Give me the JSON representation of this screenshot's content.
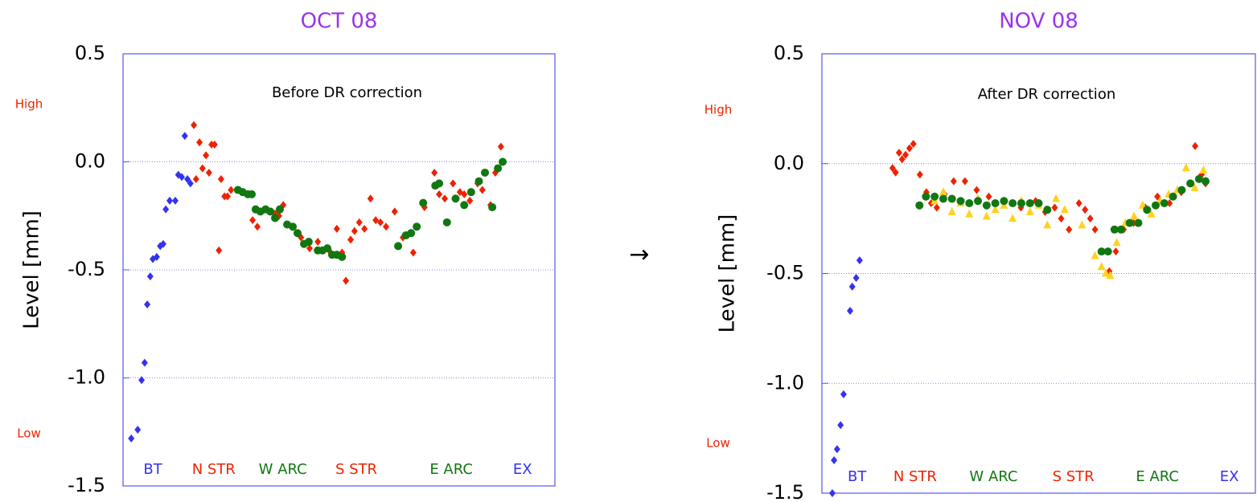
{
  "chart_data": [
    {
      "type": "scatter",
      "title": "OCT 08",
      "y_label": "Level [mm]",
      "annotation": "Before DR correction",
      "y_high_label": "High",
      "y_low_label": "Low",
      "sections": [
        "BT",
        "N STR",
        "W ARC",
        "S STR",
        "E ARC",
        "EX"
      ],
      "section_colors": [
        "#3333ee",
        "#ee2200",
        "#117711",
        "#ee2200",
        "#117711",
        "#3333ee"
      ],
      "xlim": [
        0,
        100
      ],
      "ylim": [
        -1.5,
        0.5
      ],
      "yticks": [
        0.5,
        {
          "value": 0,
          "label": "0.0"
        },
        -0.5,
        {
          "value": -1,
          "label": "-1.0"
        },
        -1.5
      ],
      "grid": true,
      "series": [
        {
          "color": "#3333ee",
          "marker": "diamond",
          "x": [
            1.9,
            3.4,
            4.3,
            5.0,
            5.6,
            6.3,
            6.9,
            7.8,
            8.6,
            9.3,
            9.9,
            10.8,
            12.1,
            12.8,
            13.6,
            14.3,
            14.9,
            15.6
          ],
          "values": [
            -1.28,
            -1.24,
            -1.01,
            -0.93,
            -0.66,
            -0.53,
            -0.45,
            -0.44,
            -0.39,
            -0.38,
            -0.22,
            -0.18,
            -0.18,
            -0.06,
            -0.07,
            0.12,
            -0.08,
            -0.1
          ]
        },
        {
          "color": "#ee2200",
          "marker": "diamond",
          "x": [
            16.4,
            16.9,
            17.7,
            18.4,
            19.2,
            19.9,
            20.5,
            21.2,
            22.2,
            22.7,
            23.5,
            24.2,
            25.0,
            30.0,
            31.1,
            35.2,
            36.1,
            37.1,
            41.2,
            43.2,
            45.1,
            47.7,
            49.5,
            50.7,
            51.6,
            52.7,
            53.6,
            54.7,
            55.9,
            57.3,
            58.5,
            59.6,
            60.9,
            62.9,
            64.8,
            67.2,
            68.2,
            69.8,
            72.1,
            73.2,
            74.5,
            76.4,
            78.0,
            79.0,
            80.3,
            82.1,
            83.2,
            85.1,
            86.2,
            87.5
          ],
          "values": [
            0.17,
            -0.08,
            0.09,
            -0.03,
            0.03,
            -0.05,
            0.08,
            0.08,
            -0.41,
            -0.08,
            -0.16,
            -0.16,
            -0.13,
            -0.27,
            -0.3,
            -0.24,
            -0.25,
            -0.2,
            -0.35,
            -0.4,
            -0.37,
            -0.41,
            -0.31,
            -0.42,
            -0.55,
            -0.36,
            -0.32,
            -0.28,
            -0.31,
            -0.17,
            -0.27,
            -0.28,
            -0.3,
            -0.23,
            -0.35,
            -0.42,
            -0.3,
            -0.21,
            -0.05,
            -0.15,
            -0.17,
            -0.1,
            -0.14,
            -0.15,
            -0.18,
            -0.1,
            -0.13,
            -0.2,
            -0.05,
            0.07
          ]
        },
        {
          "color": "#117711",
          "marker": "circle",
          "x": [
            26.6,
            27.7,
            28.9,
            29.8,
            30.7,
            31.8,
            33.0,
            34.1,
            35.2,
            36.3,
            38.0,
            39.3,
            40.4,
            41.9,
            43.0,
            45.1,
            46.2,
            47.3,
            48.4,
            49.5,
            50.7,
            63.7,
            65.5,
            66.7,
            68.0,
            69.5,
            72.3,
            73.2,
            75.0,
            77.0,
            79.0,
            80.6,
            82.4,
            83.8,
            85.5,
            86.8,
            87.9
          ],
          "values": [
            -0.13,
            -0.14,
            -0.15,
            -0.15,
            -0.22,
            -0.23,
            -0.22,
            -0.23,
            -0.26,
            -0.22,
            -0.29,
            -0.3,
            -0.33,
            -0.38,
            -0.37,
            -0.41,
            -0.41,
            -0.4,
            -0.43,
            -0.43,
            -0.44,
            -0.39,
            -0.34,
            -0.33,
            -0.3,
            -0.19,
            -0.11,
            -0.1,
            -0.28,
            -0.17,
            -0.2,
            -0.14,
            -0.09,
            -0.05,
            -0.21,
            -0.03,
            0
          ]
        }
      ]
    },
    {
      "type": "scatter",
      "title": "NOV 08",
      "y_label": "Level [mm]",
      "annotation": "After DR correction",
      "y_high_label": "High",
      "y_low_label": "Low",
      "sections": [
        "BT",
        "N STR",
        "W ARC",
        "S STR",
        "E ARC",
        "EX"
      ],
      "section_colors": [
        "#3333ee",
        "#ee2200",
        "#117711",
        "#ee2200",
        "#117711",
        "#3333ee"
      ],
      "xlim": [
        0,
        100
      ],
      "ylim": [
        -1.5,
        0.5
      ],
      "yticks": [
        0.5,
        {
          "value": 0,
          "label": "0.0"
        },
        -0.5,
        {
          "value": -1,
          "label": "-1.0"
        },
        -1.5
      ],
      "grid": true,
      "series": [
        {
          "color": "#3333ee",
          "marker": "diamond",
          "x": [
            2.4,
            2.8,
            3.5,
            4.3,
            5.0,
            6.5,
            7.0,
            7.9,
            8.7
          ],
          "values": [
            -1.5,
            -1.35,
            -1.3,
            -1.19,
            -1.05,
            -0.67,
            -0.56,
            -0.52,
            -0.44
          ]
        },
        {
          "color": "#ee2200",
          "marker": "diamond",
          "x": [
            16.3,
            17.0,
            17.8,
            18.5,
            19.3,
            20.2,
            21.1,
            22.6,
            24.1,
            25.2,
            26.5,
            28.3,
            30.4,
            33.0,
            35.7,
            38.5,
            42.2,
            45.9,
            49.3,
            51.5,
            53.7,
            55.2,
            57.0,
            59.3,
            60.7,
            61.9,
            63.0,
            64.4,
            66.3,
            67.8,
            69.6,
            71.9,
            74.6,
            77.4,
            80.2,
            82.9,
            86.1,
            87.6,
            88.5
          ],
          "values": [
            -0.02,
            -0.04,
            0.05,
            0.02,
            0.04,
            0.07,
            0.09,
            -0.05,
            -0.13,
            -0.18,
            -0.2,
            -0.14,
            -0.08,
            -0.08,
            -0.12,
            -0.15,
            -0.17,
            -0.2,
            -0.17,
            -0.22,
            -0.2,
            -0.25,
            -0.3,
            -0.18,
            -0.21,
            -0.25,
            -0.3,
            -0.4,
            -0.49,
            -0.4,
            -0.3,
            -0.27,
            -0.2,
            -0.15,
            -0.18,
            -0.13,
            0.08,
            -0.05,
            -0.09
          ]
        },
        {
          "color": "#ffd21f",
          "marker": "triangle",
          "x": [
            26,
            28,
            30,
            32,
            34,
            36,
            38,
            40,
            42,
            44,
            46,
            48,
            50,
            52,
            54,
            56,
            60,
            63,
            64.5,
            65.5,
            66.5,
            68,
            70,
            72,
            74,
            76,
            78,
            80,
            82,
            84,
            86,
            88
          ],
          "values": [
            -0.17,
            -0.13,
            -0.22,
            -0.18,
            -0.23,
            -0.16,
            -0.24,
            -0.21,
            -0.19,
            -0.25,
            -0.17,
            -0.22,
            -0.19,
            -0.28,
            -0.16,
            -0.21,
            -0.28,
            -0.42,
            -0.47,
            -0.5,
            -0.51,
            -0.36,
            -0.27,
            -0.24,
            -0.19,
            -0.23,
            -0.17,
            -0.14,
            -0.12,
            -0.02,
            -0.11,
            -0.03
          ]
        },
        {
          "color": "#117711",
          "marker": "circle",
          "x": [
            22.5,
            24,
            26,
            28,
            30,
            32,
            34,
            36,
            38,
            40,
            42,
            44,
            46,
            48,
            50,
            52,
            64.5,
            66,
            67.5,
            69,
            71,
            73,
            75,
            77,
            79,
            81,
            83,
            85,
            87,
            88.5
          ],
          "values": [
            -0.19,
            -0.15,
            -0.15,
            -0.16,
            -0.16,
            -0.17,
            -0.18,
            -0.17,
            -0.19,
            -0.18,
            -0.17,
            -0.18,
            -0.18,
            -0.18,
            -0.18,
            -0.21,
            -0.4,
            -0.4,
            -0.3,
            -0.3,
            -0.27,
            -0.27,
            -0.21,
            -0.19,
            -0.18,
            -0.15,
            -0.12,
            -0.09,
            -0.07,
            -0.08
          ]
        }
      ]
    }
  ],
  "arrow": "→"
}
